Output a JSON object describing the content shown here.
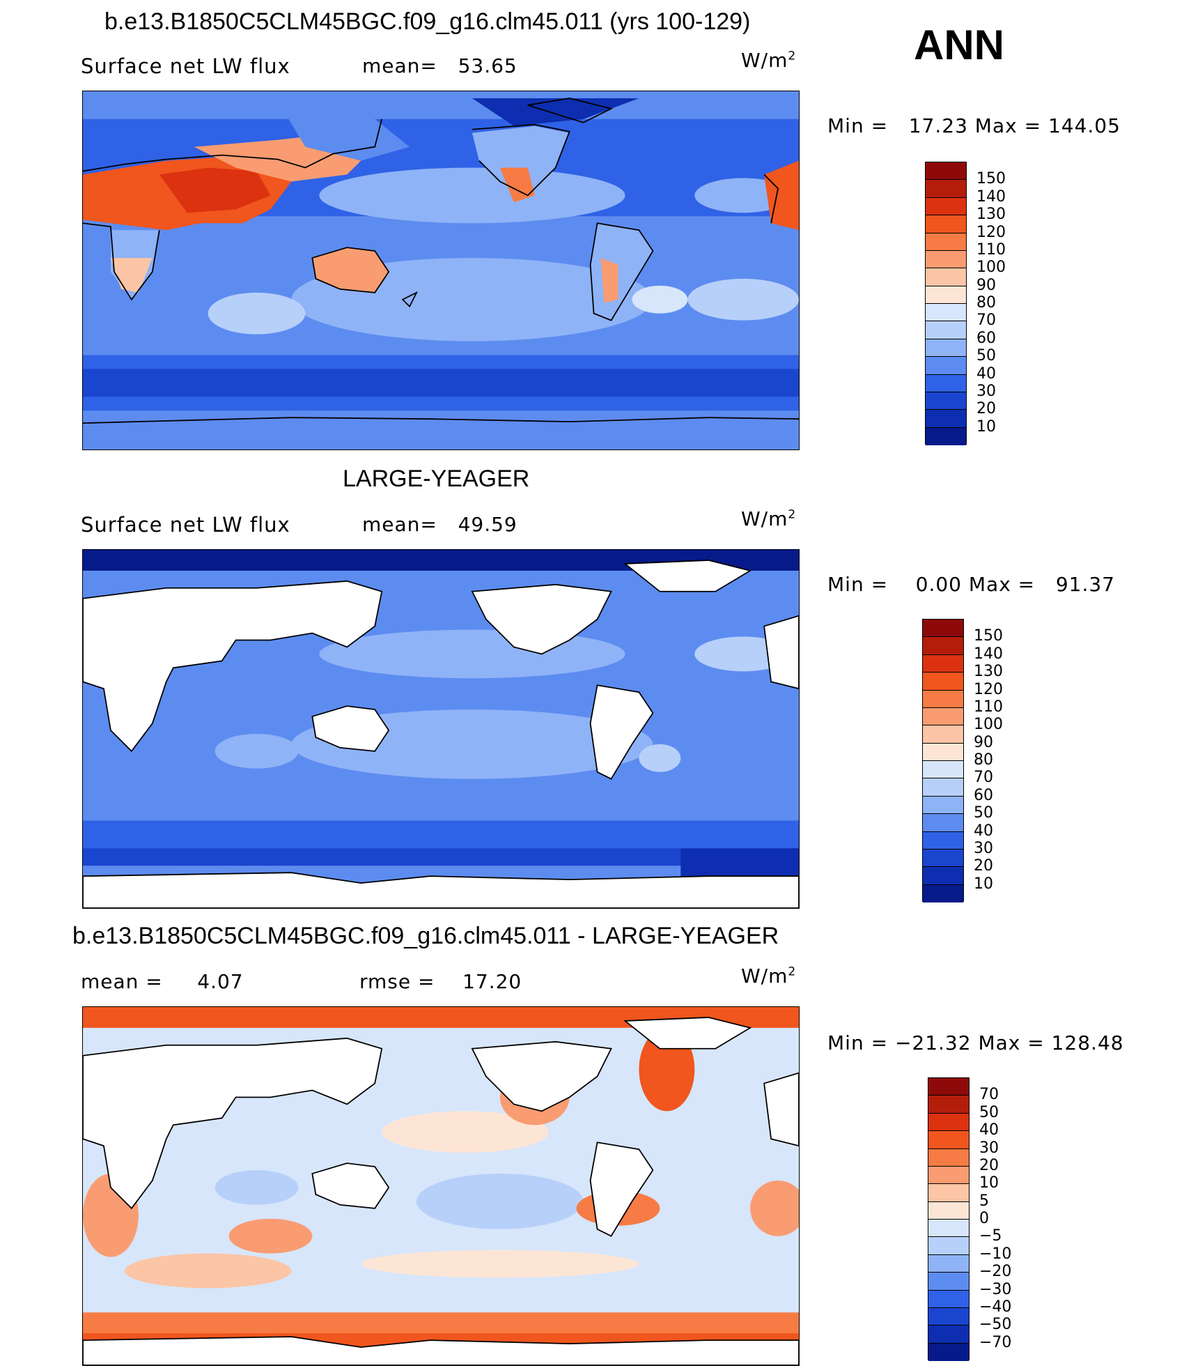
{
  "season": "ANN",
  "panels": [
    {
      "title": "b.e13.B1850C5CLM45BGC.f09_g16.clm45.011 (yrs 100-129)",
      "left_label": "Surface net LW flux",
      "stat1": "mean=   53.65",
      "stat2": "",
      "units_base": "W/m",
      "units_exp": "2",
      "minmax": "Min =   17.23 Max = 144.05",
      "colorbar": {
        "labels": [
          "150",
          "140",
          "130",
          "120",
          "110",
          "100",
          "90",
          "80",
          "70",
          "60",
          "50",
          "40",
          "30",
          "20",
          "10"
        ],
        "colors": [
          "#8e0a0a",
          "#b41d0a",
          "#dc3210",
          "#f0561e",
          "#f77b44",
          "#f99c72",
          "#fbc5a6",
          "#fde5d6",
          "#d7e6fa",
          "#b7d0fa",
          "#8fb3f7",
          "#5d8cf0",
          "#2f62e6",
          "#1a45cf",
          "#0d2eb0",
          "#061a8a"
        ]
      },
      "map_style": "model"
    },
    {
      "title": "LARGE-YEAGER",
      "left_label": "Surface net LW flux",
      "stat1": "mean=   49.59",
      "stat2": "",
      "units_base": "W/m",
      "units_exp": "2",
      "minmax": "Min =    0.00 Max =   91.37",
      "colorbar": {
        "labels": [
          "150",
          "140",
          "130",
          "120",
          "110",
          "100",
          "90",
          "80",
          "70",
          "60",
          "50",
          "40",
          "30",
          "20",
          "10"
        ],
        "colors": [
          "#8e0a0a",
          "#b41d0a",
          "#dc3210",
          "#f0561e",
          "#f77b44",
          "#f99c72",
          "#fbc5a6",
          "#fde5d6",
          "#d7e6fa",
          "#b7d0fa",
          "#8fb3f7",
          "#5d8cf0",
          "#2f62e6",
          "#1a45cf",
          "#0d2eb0",
          "#061a8a"
        ]
      },
      "map_style": "obs"
    },
    {
      "title": "b.e13.B1850C5CLM45BGC.f09_g16.clm45.011 - LARGE-YEAGER",
      "left_label": "mean =     4.07",
      "stat1": "rmse =    17.20",
      "stat2": "",
      "units_base": "W/m",
      "units_exp": "2",
      "minmax": "Min = −21.32 Max = 128.48",
      "colorbar": {
        "labels": [
          "70",
          "50",
          "40",
          "30",
          "20",
          "10",
          "5",
          "0",
          "−5",
          "−10",
          "−20",
          "−30",
          "−40",
          "−50",
          "−70"
        ],
        "colors": [
          "#8e0a0a",
          "#b41d0a",
          "#dc3210",
          "#f0561e",
          "#f77b44",
          "#f99c72",
          "#fbc5a6",
          "#fde5d6",
          "#d7e6fa",
          "#b7d0fa",
          "#8fb3f7",
          "#5d8cf0",
          "#2f62e6",
          "#1a45cf",
          "#0d2eb0",
          "#061a8a"
        ]
      },
      "map_style": "diff"
    }
  ]
}
